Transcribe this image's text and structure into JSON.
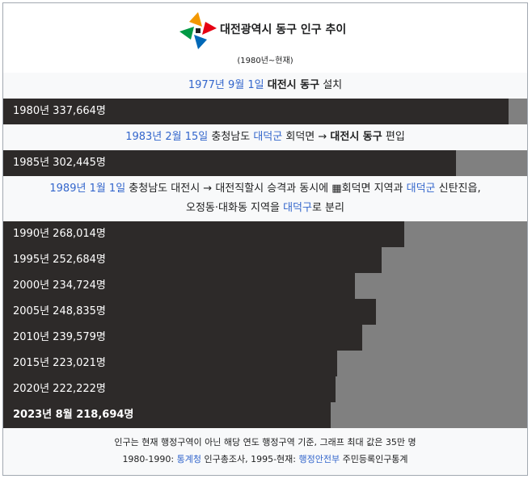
{
  "title": "대전광역시 동구 인구 추이",
  "subtitle": "(1980년~현재)",
  "events": {
    "e1": {
      "date": "1977년 9월 1일",
      "bold": "대전시 동구",
      "tail": " 설치"
    },
    "e2": {
      "date": "1983년 2월 15일",
      "t1": " 충청남도 ",
      "link1": "대덕군",
      "t2": " 회덕면 → ",
      "bold": "대전시 동구",
      "t3": " 편입"
    },
    "e3": {
      "date": "1989년 1월 1일",
      "t1": " 충청남도 대전시 → 대전직할시 승격과 동시에 ",
      "t2": "회덕면 지역과 ",
      "link1": "대덕군",
      "t3": " 신탄진읍,",
      "line2a": "오정동·대화동 지역을 ",
      "link2": "대덕구",
      "line2b": "로 분리"
    }
  },
  "chart_data": {
    "type": "bar",
    "max": 350000,
    "unit": "명",
    "bars": [
      {
        "label": "1980년 337,664명",
        "value": 337664,
        "bold": false
      },
      {
        "label": "1985년 302,445명",
        "value": 302445,
        "bold": false
      },
      {
        "label": "1990년 268,014명",
        "value": 268014,
        "bold": false
      },
      {
        "label": "1995년 252,684명",
        "value": 252684,
        "bold": false
      },
      {
        "label": "2000년 234,724명",
        "value": 234724,
        "bold": false
      },
      {
        "label": "2005년 248,835명",
        "value": 248835,
        "bold": false
      },
      {
        "label": "2010년 239,579명",
        "value": 239579,
        "bold": false
      },
      {
        "label": "2015년 223,021명",
        "value": 223021,
        "bold": false
      },
      {
        "label": "2020년 222,222명",
        "value": 222222,
        "bold": false
      },
      {
        "label": "2023년 8월 218,694명",
        "value": 218694,
        "bold": true
      }
    ],
    "colors": {
      "fill": "#2d2a29",
      "track": "#808080",
      "link": "#3366cc"
    }
  },
  "footer": {
    "line1": "인구는 현재 행정구역이 아닌 해당 연도 행정구역 기준, 그래프 최대 값은 35만 명",
    "line2a": "1980-1990: ",
    "link1": "통계청",
    "line2b": " 인구총조사, 1995-현재: ",
    "link2": "행정안전부",
    "line2c": " 주민등록인구통계"
  }
}
